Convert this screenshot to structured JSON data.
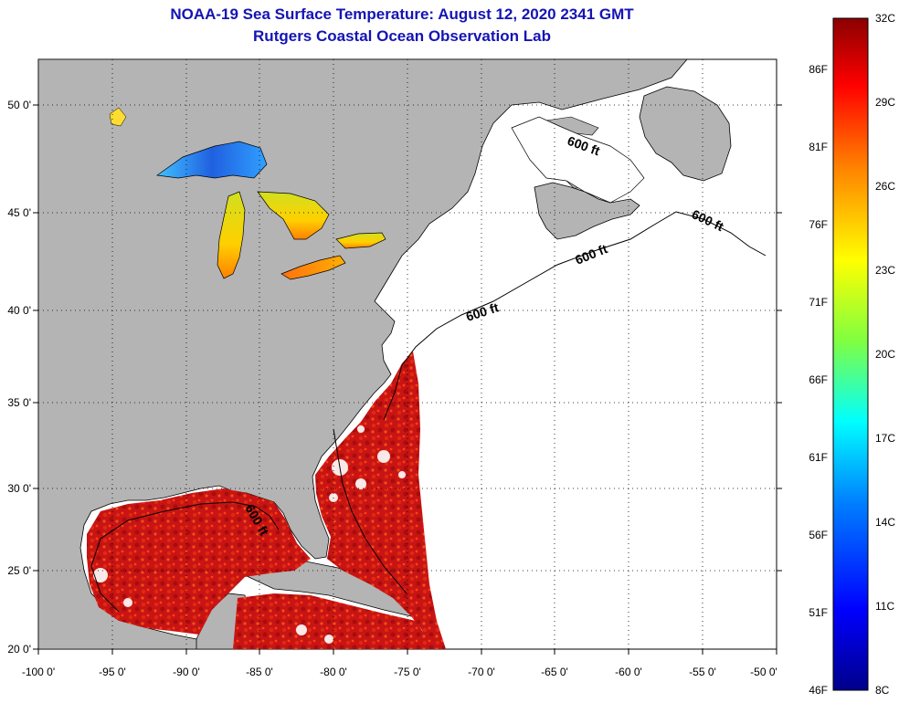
{
  "header": {
    "title_line1": "NOAA-19 Sea Surface Temperature:  August 12, 2020 2341 GMT",
    "title_line2": "Rutgers Coastal Ocean Observation Lab"
  },
  "axes": {
    "x_ticks": [
      "-100 0'",
      "-95 0'",
      "-90 0'",
      "-85 0'",
      "-80 0'",
      "-75 0'",
      "-70 0'",
      "-65 0'",
      "-60 0'",
      "-55 0'",
      "-50 0'"
    ],
    "y_ticks": [
      "50 0'",
      "45 0'",
      "40 0'",
      "35 0'",
      "30 0'",
      "25 0'",
      "20 0'"
    ]
  },
  "contour_labels": [
    "600 ft",
    "600 ft",
    "600 ft",
    "600 ft",
    "600 ft"
  ],
  "colorbar": {
    "celsius_labels": [
      "32C",
      "29C",
      "26C",
      "23C",
      "20C",
      "17C",
      "14C",
      "11C",
      "8C"
    ],
    "fahrenheit_labels": [
      "86F",
      "81F",
      "76F",
      "71F",
      "66F",
      "61F",
      "56F",
      "51F",
      "46F"
    ],
    "stops": [
      "#00008b",
      "#0000ff",
      "#0080ff",
      "#00ffff",
      "#80ff40",
      "#ffff00",
      "#ff8000",
      "#ff0000",
      "#8b0000"
    ]
  },
  "colors": {
    "title": "#1414b4",
    "land": "#b4b4b4",
    "ocean_no_data": "#ffffff",
    "warm_water": "#c81414"
  }
}
